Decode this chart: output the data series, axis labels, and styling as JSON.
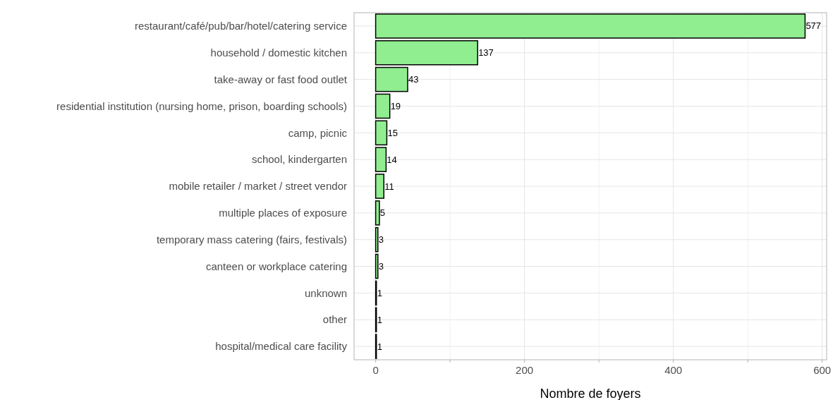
{
  "chart_data": {
    "type": "bar",
    "orientation": "horizontal",
    "xlabel": "Nombre de foyers",
    "categories": [
      "restaurant/café/pub/bar/hotel/catering service",
      "household / domestic kitchen",
      "take-away or fast food outlet",
      "residential institution (nursing home, prison, boarding schools)",
      "camp, picnic",
      "school, kindergarten",
      "mobile retailer / market / street vendor",
      "multiple places of exposure",
      "temporary mass catering (fairs, festivals)",
      "canteen or workplace catering",
      "unknown",
      "other",
      "hospital/medical care facility"
    ],
    "values": [
      577,
      137,
      43,
      19,
      15,
      14,
      11,
      5,
      3,
      3,
      1,
      1,
      1
    ],
    "color": "#90ee90",
    "data_labels": true,
    "grid": true,
    "xlim": [
      -29,
      606
    ],
    "xticks": [
      0,
      {
        "value": 100,
        "label": null
      },
      200,
      {
        "value": 300,
        "label": null
      },
      400,
      {
        "value": 500,
        "label": null
      },
      600
    ]
  }
}
